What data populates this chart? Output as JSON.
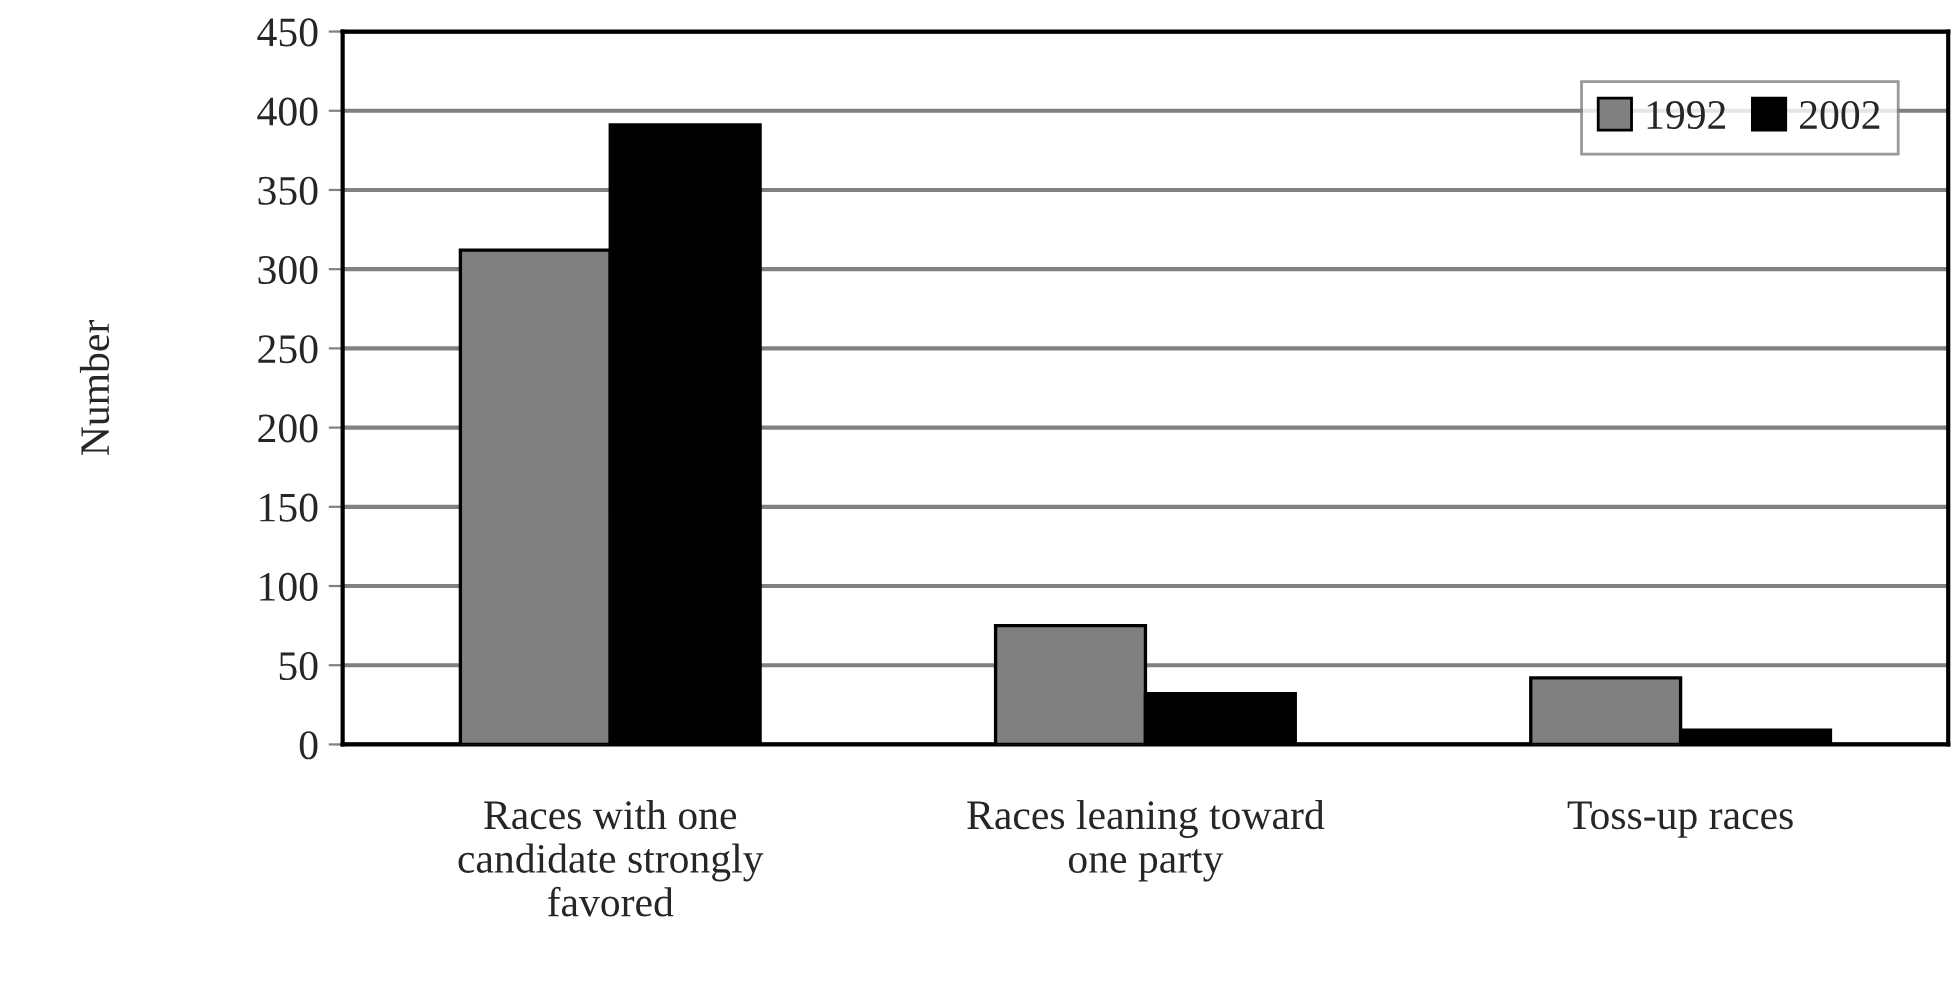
{
  "chart_data": {
    "type": "bar",
    "ylabel": "Number",
    "categories": [
      "Races with one\ncandidate strongly\nfavored",
      "Races leaning toward\none party",
      "Toss-up races"
    ],
    "series": [
      {
        "name": "1992",
        "color": "#808080",
        "values": [
          312,
          75,
          42
        ]
      },
      {
        "name": "2002",
        "color": "#000000",
        "values": [
          391,
          32,
          9
        ]
      }
    ],
    "ylim": [
      0,
      450
    ],
    "yticks": [
      0,
      50,
      100,
      150,
      200,
      250,
      300,
      350,
      400,
      450
    ],
    "grid": "y",
    "legend": "top right"
  }
}
